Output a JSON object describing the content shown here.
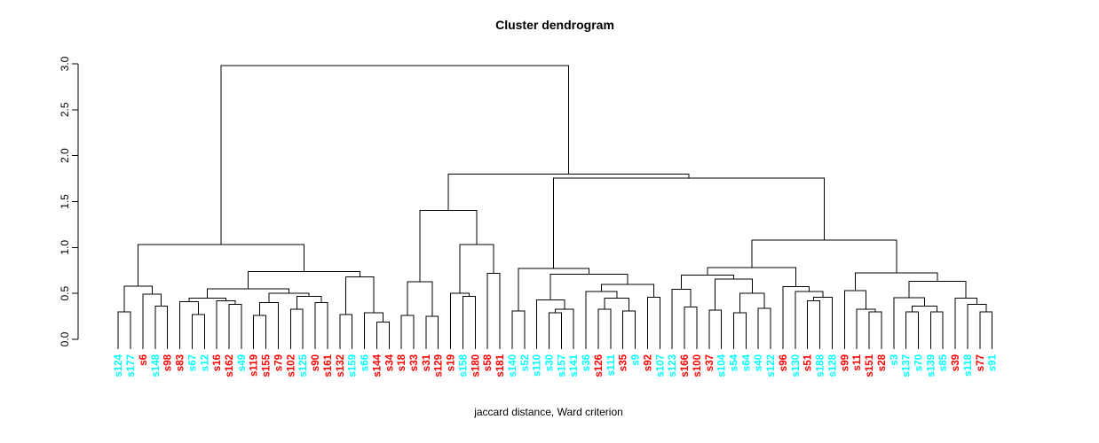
{
  "title": "Cluster dendrogram",
  "xlabel": "jaccard distance, Ward criterion",
  "colors": {
    "red": "#FF0000",
    "cyan": "#00FFFF",
    "line": "#000000",
    "background": "#FFFFFF"
  },
  "chart_data": {
    "type": "dendrogram",
    "title": "Cluster dendrogram",
    "xlabel": "jaccard distance, Ward criterion",
    "ylim": [
      0.0,
      3.0
    ],
    "yticks": [
      "0.0",
      "0.5",
      "1.0",
      "1.5",
      "2.0",
      "2.5",
      "3.0"
    ],
    "grid": false,
    "legend": "none",
    "root_height": 2.98,
    "leaves": [
      {
        "label": "s124",
        "color": "cyan"
      },
      {
        "label": "s177",
        "color": "cyan"
      },
      {
        "label": "s6",
        "color": "red"
      },
      {
        "label": "s148",
        "color": "cyan"
      },
      {
        "label": "s98",
        "color": "red"
      },
      {
        "label": "s83",
        "color": "red"
      },
      {
        "label": "s67",
        "color": "cyan"
      },
      {
        "label": "s12",
        "color": "cyan"
      },
      {
        "label": "s16",
        "color": "red"
      },
      {
        "label": "s162",
        "color": "red"
      },
      {
        "label": "s49",
        "color": "cyan"
      },
      {
        "label": "s119",
        "color": "red"
      },
      {
        "label": "s155",
        "color": "red"
      },
      {
        "label": "s79",
        "color": "red"
      },
      {
        "label": "s102",
        "color": "red"
      },
      {
        "label": "s125",
        "color": "cyan"
      },
      {
        "label": "s90",
        "color": "red"
      },
      {
        "label": "s161",
        "color": "red"
      },
      {
        "label": "s132",
        "color": "red"
      },
      {
        "label": "s159",
        "color": "cyan"
      },
      {
        "label": "s66",
        "color": "cyan"
      },
      {
        "label": "s144",
        "color": "red"
      },
      {
        "label": "s34",
        "color": "red"
      },
      {
        "label": "s18",
        "color": "red"
      },
      {
        "label": "s33",
        "color": "red"
      },
      {
        "label": "s31",
        "color": "red"
      },
      {
        "label": "s129",
        "color": "red"
      },
      {
        "label": "s19",
        "color": "red"
      },
      {
        "label": "s158",
        "color": "cyan"
      },
      {
        "label": "s180",
        "color": "red"
      },
      {
        "label": "s58",
        "color": "red"
      },
      {
        "label": "s181",
        "color": "red"
      },
      {
        "label": "s140",
        "color": "cyan"
      },
      {
        "label": "s52",
        "color": "cyan"
      },
      {
        "label": "s110",
        "color": "cyan"
      },
      {
        "label": "s30",
        "color": "cyan"
      },
      {
        "label": "s157",
        "color": "cyan"
      },
      {
        "label": "s141",
        "color": "cyan"
      },
      {
        "label": "s36",
        "color": "cyan"
      },
      {
        "label": "s126",
        "color": "red"
      },
      {
        "label": "s111",
        "color": "cyan"
      },
      {
        "label": "s35",
        "color": "red"
      },
      {
        "label": "s9",
        "color": "cyan"
      },
      {
        "label": "s92",
        "color": "red"
      },
      {
        "label": "s107",
        "color": "cyan"
      },
      {
        "label": "s123",
        "color": "cyan"
      },
      {
        "label": "s166",
        "color": "red"
      },
      {
        "label": "s100",
        "color": "red"
      },
      {
        "label": "s37",
        "color": "red"
      },
      {
        "label": "s104",
        "color": "cyan"
      },
      {
        "label": "s54",
        "color": "cyan"
      },
      {
        "label": "s64",
        "color": "cyan"
      },
      {
        "label": "s40",
        "color": "cyan"
      },
      {
        "label": "s122",
        "color": "cyan"
      },
      {
        "label": "s96",
        "color": "red"
      },
      {
        "label": "s130",
        "color": "cyan"
      },
      {
        "label": "s51",
        "color": "red"
      },
      {
        "label": "s188",
        "color": "cyan"
      },
      {
        "label": "s128",
        "color": "cyan"
      },
      {
        "label": "s99",
        "color": "red"
      },
      {
        "label": "s11",
        "color": "red"
      },
      {
        "label": "s151",
        "color": "red"
      },
      {
        "label": "s28",
        "color": "red"
      },
      {
        "label": "s3",
        "color": "cyan"
      },
      {
        "label": "s137",
        "color": "cyan"
      },
      {
        "label": "s70",
        "color": "cyan"
      },
      {
        "label": "s139",
        "color": "cyan"
      },
      {
        "label": "s85",
        "color": "cyan"
      },
      {
        "label": "s39",
        "color": "red"
      },
      {
        "label": "s118",
        "color": "cyan"
      },
      {
        "label": "s77",
        "color": "red"
      },
      {
        "label": "s91",
        "color": "cyan"
      }
    ],
    "merge_tree": [
      2.98,
      [
        1.03,
        [
          0.58,
          [
            0.3,
            "s124",
            "s177"
          ],
          [
            0.49,
            "s6",
            [
              0.36,
              "s148",
              "s98"
            ]
          ]
        ],
        [
          0.74,
          [
            0.55,
            [
              0.45,
              [
                0.41,
                "s83",
                [
                  0.27,
                  "s67",
                  "s12"
                ]
              ],
              [
                0.42,
                "s16",
                [
                  0.38,
                  "s162",
                  "s49"
                ]
              ]
            ],
            [
              0.5,
              [
                0.4,
                [
                  0.26,
                  "s119",
                  "s155"
                ],
                "s79"
              ],
              [
                0.47,
                [
                  0.33,
                  "s102",
                  "s125"
                ],
                [
                  0.4,
                  "s90",
                  "s161"
                ]
              ]
            ]
          ],
          [
            0.68,
            [
              0.27,
              "s132",
              "s159"
            ],
            [
              0.29,
              "s66",
              [
                0.19,
                "s144",
                "s34"
              ]
            ]
          ]
        ]
      ],
      [
        1.8,
        [
          1.405,
          [
            0.625,
            [
              0.26,
              "s18",
              "s33"
            ],
            [
              0.25,
              "s31",
              "s129"
            ]
          ],
          [
            1.03,
            [
              0.5,
              "s19",
              [
                0.47,
                "s158",
                "s180"
              ]
            ],
            [
              0.72,
              "s58",
              "s181"
            ]
          ]
        ],
        [
          1.755,
          [
            0.77,
            [
              0.31,
              "s140",
              "s52"
            ],
            [
              0.71,
              [
                0.43,
                "s110",
                [
                  0.33,
                  [
                    0.29,
                    "s30",
                    "s157"
                  ],
                  "s141"
                ]
              ],
              [
                0.6,
                [
                  0.52,
                  "s36",
                  [
                    0.45,
                    [
                      0.33,
                      "s126",
                      "s111"
                    ],
                    [
                      0.31,
                      "s35",
                      "s9"
                    ]
                  ]
                ],
                [
                  0.46,
                  "s92",
                  "s107"
                ]
              ]
            ]
          ],
          [
            1.08,
            [
              0.78,
              [
                0.7,
                [
                  0.545,
                  "s123",
                  [
                    0.35,
                    "s166",
                    "s100"
                  ]
                ],
                [
                  0.655,
                  [
                    0.32,
                    "s37",
                    "s104"
                  ],
                  [
                    0.5,
                    [
                      0.29,
                      "s54",
                      "s64"
                    ],
                    [
                      0.34,
                      "s40",
                      "s122"
                    ]
                  ]
                ]
              ],
              [
                0.575,
                "s96",
                [
                  0.52,
                  "s130",
                  [
                    0.46,
                    [
                      0.42,
                      "s51",
                      "s188"
                    ],
                    "s128"
                  ]
                ]
              ]
            ],
            [
              0.725,
              [
                0.53,
                "s99",
                [
                  0.33,
                  "s11",
                  [
                    0.3,
                    "s151",
                    "s28"
                  ]
                ]
              ],
              [
                0.63,
                [
                  0.455,
                  "s3",
                  [
                    0.36,
                    [
                      0.3,
                      "s137",
                      "s70"
                    ],
                    [
                      0.3,
                      "s139",
                      "s85"
                    ]
                  ]
                ],
                [
                  0.45,
                  "s39",
                  [
                    0.38,
                    "s118",
                    [
                      0.3,
                      "s77",
                      "s91"
                    ]
                  ]
                ]
              ]
            ]
          ]
        ]
      ]
    ]
  }
}
